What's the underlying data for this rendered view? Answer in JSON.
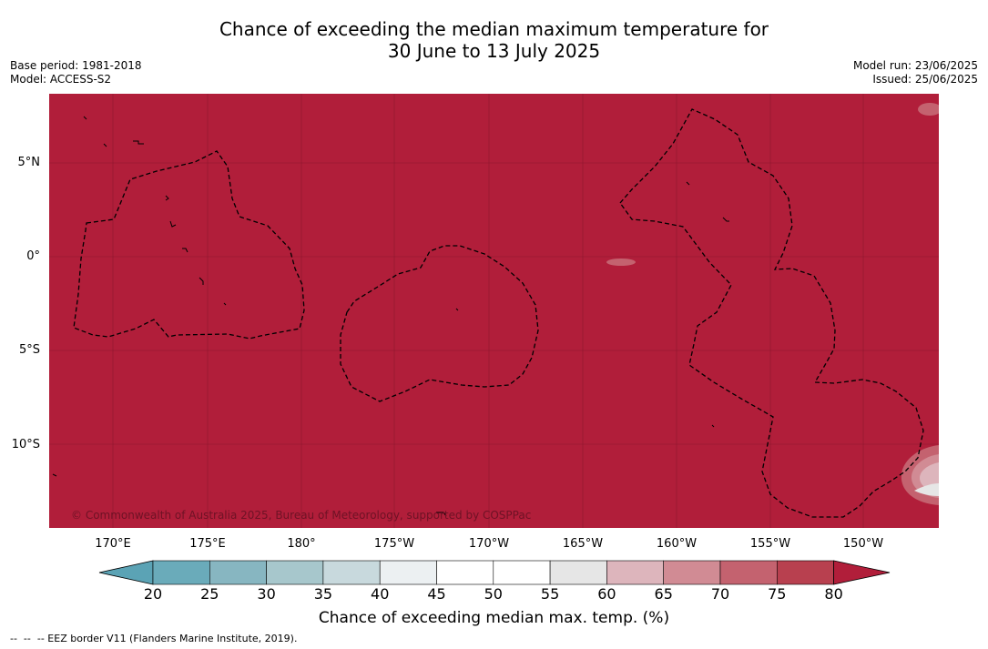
{
  "title": {
    "line1": "Chance of exceeding the median maximum temperature for",
    "line2": "30 June to 13 July 2025"
  },
  "meta_left": {
    "base_period": "Base period: 1981-2018",
    "model": "Model: ACCESS-S2"
  },
  "meta_right": {
    "model_run": "Model run: 23/06/2025",
    "issued": "Issued: 25/06/2025"
  },
  "map": {
    "background_color": "#b11e3a",
    "lat_labels": [
      "5°N",
      "0°",
      "5°S",
      "10°S"
    ],
    "lon_labels": [
      "170°E",
      "175°E",
      "180°",
      "175°W",
      "170°W",
      "165°W",
      "160°W",
      "155°W",
      "150°W"
    ],
    "copyright": "© Commonwealth of Australia 2025, Bureau of Meteorology, supported by COSPPac",
    "eez_border_style": "dashed"
  },
  "colorbar": {
    "ticks": [
      "20",
      "25",
      "30",
      "35",
      "40",
      "45",
      "50",
      "55",
      "60",
      "65",
      "70",
      "75",
      "80"
    ],
    "colors": [
      "#5ba3b5",
      "#6aabba",
      "#87b6c1",
      "#a7c7cc",
      "#c8d9dd",
      "#ecf0f2",
      "#ffffff",
      "#ffffff",
      "#e6e6e6",
      "#ddb5bc",
      "#d18b94",
      "#c4626f",
      "#b8404f",
      "#b11e3a"
    ],
    "title": "Chance of exceeding median max. temp. (%)"
  },
  "footer": "--  --  -- EEZ border V11 (Flanders Marine Institute, 2019)."
}
